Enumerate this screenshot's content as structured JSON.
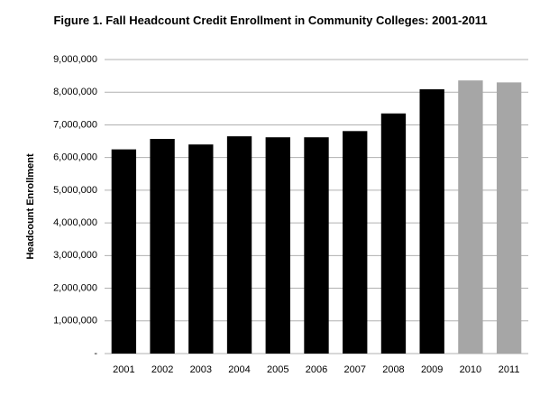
{
  "chart_data": {
    "type": "bar",
    "title": "Figure 1. Fall Headcount Credit Enrollment in Community Colleges: 2001-2011",
    "y_label": "Headcount  Enrollment",
    "categories": [
      "2001",
      "2002",
      "2003",
      "2004",
      "2005",
      "2006",
      "2007",
      "2008",
      "2009",
      "2010",
      "2011"
    ],
    "values": [
      6250000,
      6570000,
      6400000,
      6650000,
      6620000,
      6620000,
      6810000,
      7350000,
      8090000,
      8360000,
      8300000
    ],
    "colors": [
      "#000000",
      "#000000",
      "#000000",
      "#000000",
      "#000000",
      "#000000",
      "#000000",
      "#000000",
      "#000000",
      "#a6a6a6",
      "#a6a6a6"
    ],
    "ylim": [
      0,
      9000000
    ],
    "yticks": [
      {
        "value": 0,
        "label": "-"
      },
      {
        "value": 1000000,
        "label": "1,000,000"
      },
      {
        "value": 2000000,
        "label": "2,000,000"
      },
      {
        "value": 3000000,
        "label": "3,000,000"
      },
      {
        "value": 4000000,
        "label": "4,000,000"
      },
      {
        "value": 5000000,
        "label": "5,000,000"
      },
      {
        "value": 6000000,
        "label": "6,000,000"
      },
      {
        "value": 7000000,
        "label": "7,000,000"
      },
      {
        "value": 8000000,
        "label": "8,000,000"
      },
      {
        "value": 9000000,
        "label": "9,000,000"
      }
    ],
    "grid": true
  }
}
